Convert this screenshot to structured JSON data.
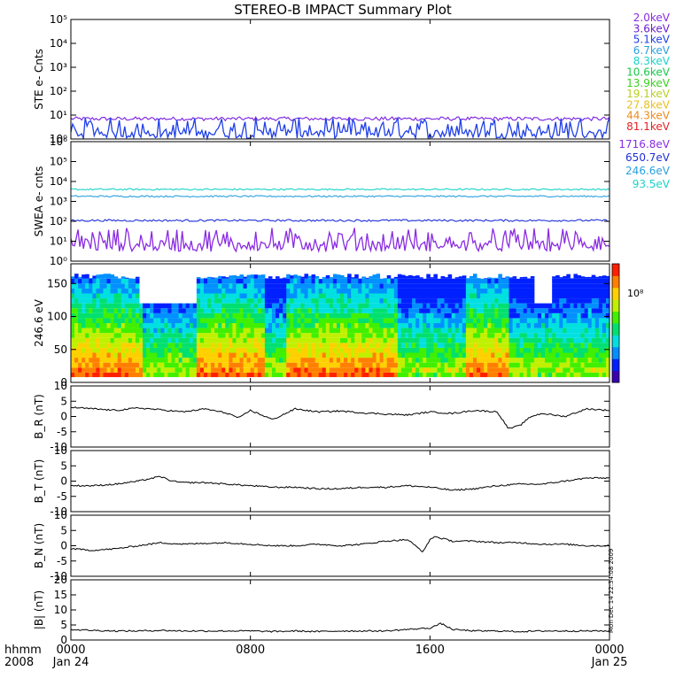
{
  "figure": {
    "title": "STEREO-B IMPACT Summary Plot",
    "run_stamp": "Mon Dec 14 22:34:08 2009",
    "time_axis": {
      "left_label_top": "hhmm",
      "left_label_bottom": "2008",
      "ticks": [
        {
          "top": "0000",
          "bottom": "Jan 24",
          "t": 0
        },
        {
          "top": "0800",
          "bottom": "",
          "t": 8
        },
        {
          "top": "1600",
          "bottom": "",
          "t": 16
        },
        {
          "top": "0000",
          "bottom": "Jan 25",
          "t": 24
        }
      ]
    }
  },
  "legend": {
    "ste": [
      {
        "label": "2.0keV",
        "color": "#8a2be2"
      },
      {
        "label": "3.6keV",
        "color": "#6a1fd0"
      },
      {
        "label": "5.1keV",
        "color": "#1f3fe8"
      },
      {
        "label": "6.7keV",
        "color": "#2aa0e0"
      },
      {
        "label": "8.3keV",
        "color": "#19d3c8"
      },
      {
        "label": "10.6keV",
        "color": "#19c84a"
      },
      {
        "label": "13.9keV",
        "color": "#3bd020"
      },
      {
        "label": "19.1keV",
        "color": "#b8d020"
      },
      {
        "label": "27.8keV",
        "color": "#e8c020"
      },
      {
        "label": "44.3keV",
        "color": "#f08a1a"
      },
      {
        "label": "81.1keV",
        "color": "#e82020"
      }
    ],
    "swea": [
      {
        "label": "1716.8eV",
        "color": "#8a2be2"
      },
      {
        "label": "650.7eV",
        "color": "#1f2fd8"
      },
      {
        "label": "246.6eV",
        "color": "#2aa0e0"
      },
      {
        "label": "93.5eV",
        "color": "#19d3c8"
      }
    ]
  },
  "colorbar": {
    "label": "10⁸",
    "colors": [
      "#3a00b0",
      "#0020ff",
      "#0090ff",
      "#00e0e0",
      "#00e070",
      "#40f000",
      "#c0f000",
      "#ffd000",
      "#ff8000",
      "#ff2000"
    ]
  },
  "chart_data": [
    {
      "type": "line",
      "ylabel": "STE e- Cnts",
      "yscale": "log",
      "ylim": [
        1,
        100000
      ],
      "yticks": [
        "10⁰",
        "10¹",
        "10²",
        "10³",
        "10⁴",
        "10⁵"
      ],
      "xlim": [
        0,
        24
      ],
      "series": [
        {
          "name": "2.0keV",
          "color": "#7a1fe0",
          "level": 7,
          "noise": 0.08
        },
        {
          "name": "5.1keV",
          "color": "#1f3fe8",
          "level": 1.05,
          "noise": 0.4,
          "spiky": true
        }
      ]
    },
    {
      "type": "line",
      "ylabel": "SWEA e- cnts",
      "yscale": "log",
      "ylim": [
        1,
        1000000
      ],
      "yticks": [
        "10⁰",
        "10¹",
        "10²",
        "10³",
        "10⁴",
        "10⁵",
        "10⁶"
      ],
      "xlim": [
        0,
        24
      ],
      "series": [
        {
          "name": "93.5eV",
          "color": "#19d3c8",
          "level": 4000,
          "noise": 0.04
        },
        {
          "name": "246.6eV",
          "color": "#2aa0e0",
          "level": 1800,
          "noise": 0.04
        },
        {
          "name": "650.7eV",
          "color": "#1f2fd8",
          "level": 110,
          "noise": 0.05
        },
        {
          "name": "1716.8eV",
          "color": "#8a2be2",
          "level": 3,
          "noise": 0.55,
          "spiky": true
        }
      ]
    },
    {
      "type": "heatmap",
      "ylabel": "246.6 eV",
      "ylim": [
        0,
        180
      ],
      "yticks": [
        0,
        50,
        100,
        150
      ],
      "xlim": [
        0,
        24
      ]
    },
    {
      "type": "line",
      "ylabel": "B_R (nT)",
      "ylim": [
        -10,
        10
      ],
      "yticks": [
        -10,
        -5,
        0,
        5,
        10
      ],
      "xlim": [
        0,
        24
      ],
      "x": [
        0,
        1,
        2,
        3,
        4,
        5,
        6,
        7,
        7.5,
        8,
        9,
        10,
        11,
        12,
        13,
        14,
        15,
        16,
        17,
        18,
        19,
        19.5,
        20,
        20.5,
        21,
        22,
        23,
        24
      ],
      "y": [
        3,
        2.5,
        2,
        2.8,
        2.2,
        1.5,
        2.5,
        1.0,
        -0.5,
        2,
        -1,
        2.5,
        1.5,
        1.8,
        1.2,
        0.8,
        0.5,
        1.5,
        1,
        2,
        1.5,
        -4,
        -3,
        0,
        1,
        0,
        2.5,
        2
      ]
    },
    {
      "type": "line",
      "ylabel": "B_T (nT)",
      "ylim": [
        -10,
        10
      ],
      "yticks": [
        -10,
        -5,
        0,
        5,
        10
      ],
      "xlim": [
        0,
        24
      ],
      "x": [
        0,
        1,
        2,
        3,
        4,
        4.5,
        5,
        6,
        7,
        8,
        9,
        10,
        11,
        12,
        13,
        14,
        15,
        16,
        17,
        18,
        19,
        20,
        21,
        22,
        23,
        24
      ],
      "y": [
        -1.5,
        -1.5,
        -1,
        0,
        1.5,
        0,
        -0.5,
        -0.5,
        -1,
        -1.5,
        -2,
        -2,
        -2.5,
        -2.5,
        -2,
        -2,
        -1.5,
        -2,
        -3,
        -2.5,
        -1.5,
        -1,
        -1,
        0,
        1,
        1
      ]
    },
    {
      "type": "line",
      "ylabel": "B_N (nT)",
      "ylim": [
        -10,
        10
      ],
      "yticks": [
        -10,
        -5,
        0,
        5,
        10
      ],
      "xlim": [
        0,
        24
      ],
      "x": [
        0,
        1,
        2,
        3,
        4,
        5,
        6,
        7,
        8,
        9,
        10,
        11,
        12,
        13,
        14,
        15,
        15.7,
        16,
        16.2,
        17,
        18,
        19,
        20,
        21,
        22,
        23,
        24
      ],
      "y": [
        -1,
        -1.5,
        -1,
        0,
        1,
        0.5,
        0.8,
        1,
        0.5,
        0,
        0,
        0.5,
        0,
        0.5,
        1.5,
        2,
        -2,
        2,
        3,
        1.5,
        1.5,
        1,
        1,
        0.5,
        0.5,
        0,
        0
      ]
    },
    {
      "type": "line",
      "ylabel": "|B| (nT)",
      "ylim": [
        0,
        20
      ],
      "yticks": [
        0,
        5,
        10,
        15,
        20
      ],
      "xlim": [
        0,
        24
      ],
      "x": [
        0,
        1,
        2,
        3,
        4,
        5,
        6,
        7,
        8,
        9,
        10,
        11,
        12,
        13,
        14,
        15,
        16,
        16.5,
        17,
        18,
        19,
        20,
        21,
        22,
        23,
        24
      ],
      "y": [
        3.5,
        3.2,
        3,
        3,
        3.2,
        3,
        3,
        3,
        3,
        2.8,
        3,
        2.8,
        3,
        3,
        3,
        3.5,
        4,
        5.5,
        3.5,
        3,
        3,
        2.8,
        3,
        3,
        3,
        3
      ]
    }
  ]
}
